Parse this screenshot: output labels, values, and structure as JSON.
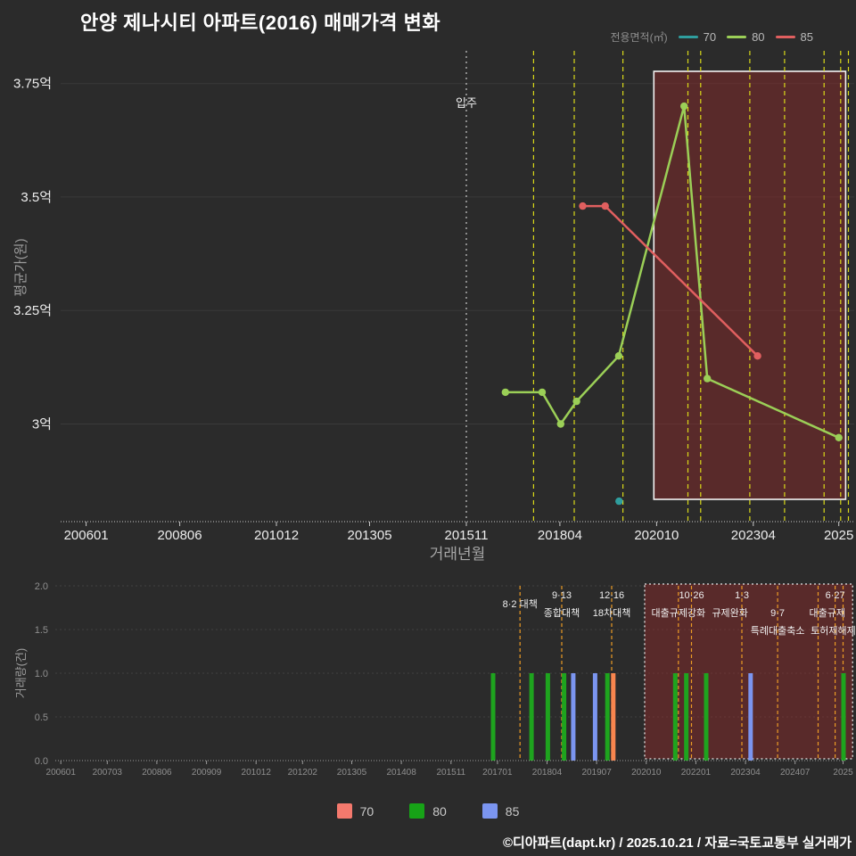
{
  "title": "안양 제나시티 아파트(2016) 매매가격 변화",
  "legend_top": {
    "label": "전용면적(㎡)",
    "items": [
      {
        "label": "70",
        "color": "#2f9e9e"
      },
      {
        "label": "80",
        "color": "#9bcf57"
      },
      {
        "label": "85",
        "color": "#e05f5f"
      }
    ]
  },
  "legend_bottom": {
    "items": [
      {
        "label": "70",
        "color": "#f4796d"
      },
      {
        "label": "80",
        "color": "#17a317"
      },
      {
        "label": "85",
        "color": "#7b95f0"
      }
    ]
  },
  "footer": "©디아파트(dapt.kr) / 2025.10.21 / 자료=국토교통부 실거래가",
  "chart_data": [
    {
      "type": "line",
      "name": "price",
      "xlabel": "거래년월",
      "ylabel": "평균가(원)",
      "unit": "억",
      "y_ticks": [
        {
          "v": 3.0,
          "label": "3억"
        },
        {
          "v": 3.25,
          "label": "3.25억"
        },
        {
          "v": 3.5,
          "label": "3.5억"
        },
        {
          "v": 3.75,
          "label": "3.75억"
        }
      ],
      "x_ticks": [
        {
          "v": 2006.04,
          "label": "200601"
        },
        {
          "v": 2008.46,
          "label": "200806"
        },
        {
          "v": 2010.96,
          "label": "201012"
        },
        {
          "v": 2013.37,
          "label": "201305"
        },
        {
          "v": 2015.87,
          "label": "201511"
        },
        {
          "v": 2018.29,
          "label": "201804"
        },
        {
          "v": 2020.79,
          "label": "202010"
        },
        {
          "v": 2023.29,
          "label": "202304"
        },
        {
          "v": 2025.5,
          "label": "2025"
        }
      ],
      "move_in": {
        "t": 2015.87,
        "label": "입주"
      },
      "policy_lines": [
        2017.61,
        2018.66,
        2019.92,
        2021.6,
        2021.93,
        2023.2,
        2024.1,
        2025.12,
        2025.55,
        2025.75
      ],
      "highlight": {
        "t0": 2020.72,
        "t1": 2025.68
      },
      "series": [
        {
          "name": "70",
          "color": "#2f9e9e",
          "points": [
            [
              2019.82,
              2.83
            ]
          ]
        },
        {
          "name": "80",
          "color": "#9bcf57",
          "points": [
            [
              2016.88,
              3.07
            ],
            [
              2017.83,
              3.07
            ],
            [
              2018.31,
              3.0
            ],
            [
              2018.72,
              3.05
            ],
            [
              2019.81,
              3.15
            ],
            [
              2021.5,
              3.7
            ],
            [
              2022.1,
              3.1
            ],
            [
              2025.5,
              2.97
            ]
          ]
        },
        {
          "name": "85",
          "color": "#e05f5f",
          "points": [
            [
              2018.88,
              3.48
            ],
            [
              2019.46,
              3.48
            ],
            [
              2023.4,
              3.15
            ]
          ]
        }
      ]
    },
    {
      "type": "bar",
      "name": "volume",
      "ylabel": "거래량(건)",
      "ylim": [
        0,
        2
      ],
      "y_ticks": [
        {
          "v": 0,
          "label": "0.0"
        },
        {
          "v": 0.5,
          "label": "0.5"
        },
        {
          "v": 1,
          "label": "1.0"
        },
        {
          "v": 1.5,
          "label": "1.5"
        },
        {
          "v": 2,
          "label": "2.0"
        }
      ],
      "x_ticks": [
        {
          "v": 2006.04,
          "label": "200601"
        },
        {
          "v": 2007.21,
          "label": "200703"
        },
        {
          "v": 2008.46,
          "label": "200806"
        },
        {
          "v": 2009.71,
          "label": "200909"
        },
        {
          "v": 2010.96,
          "label": "201012"
        },
        {
          "v": 2012.13,
          "label": "201202"
        },
        {
          "v": 2013.37,
          "label": "201305"
        },
        {
          "v": 2014.62,
          "label": "201408"
        },
        {
          "v": 2015.87,
          "label": "201511"
        },
        {
          "v": 2017.04,
          "label": "201701"
        },
        {
          "v": 2018.29,
          "label": "201804"
        },
        {
          "v": 2019.54,
          "label": "201907"
        },
        {
          "v": 2020.79,
          "label": "202010"
        },
        {
          "v": 2022.04,
          "label": "202201"
        },
        {
          "v": 2023.29,
          "label": "202304"
        },
        {
          "v": 2024.54,
          "label": "202407"
        },
        {
          "v": 2025.75,
          "label": "2025"
        }
      ],
      "policy_lines": [
        2017.61,
        2018.66,
        2019.92,
        2021.6,
        2021.93,
        2023.2,
        2024.1,
        2025.12,
        2025.55,
        2025.75
      ],
      "highlight": {
        "t0": 2020.75,
        "t1": 2025.99
      },
      "bar_colors": {
        "70": "#f8854e",
        "80": "#1ea41e",
        "85": "#7b95f0"
      },
      "bars": [
        {
          "t": 2016.93,
          "count": 1,
          "series": "80"
        },
        {
          "t": 2017.9,
          "count": 1,
          "series": "80"
        },
        {
          "t": 2018.31,
          "count": 1,
          "series": "80"
        },
        {
          "t": 2018.72,
          "count": 1,
          "series": "80"
        },
        {
          "t": 2018.95,
          "count": 1,
          "series": "85"
        },
        {
          "t": 2019.5,
          "count": 1,
          "series": "85"
        },
        {
          "t": 2019.81,
          "count": 1,
          "series": "80"
        },
        {
          "t": 2019.96,
          "count": 1,
          "series": "70"
        },
        {
          "t": 2021.52,
          "count": 1,
          "series": "80"
        },
        {
          "t": 2021.8,
          "count": 1,
          "series": "80"
        },
        {
          "t": 2022.3,
          "count": 1,
          "series": "80"
        },
        {
          "t": 2023.42,
          "count": 1,
          "series": "85"
        },
        {
          "t": 2025.76,
          "count": 1,
          "series": "80"
        }
      ],
      "annotations": [
        {
          "t": 2017.61,
          "row": 0.5,
          "text": "8·2 대책"
        },
        {
          "t": 2018.66,
          "row": 0,
          "text": "9·13"
        },
        {
          "t": 2018.66,
          "row": 1,
          "text": "종합대책"
        },
        {
          "t": 2019.92,
          "row": 0,
          "text": "12·16"
        },
        {
          "t": 2019.92,
          "row": 1,
          "text": "18차대책"
        },
        {
          "t": 2021.6,
          "row": 1,
          "text": "대출규제강화"
        },
        {
          "t": 2021.93,
          "row": 0,
          "text": "10·26"
        },
        {
          "t": 2022.9,
          "row": 1,
          "text": "규제완화"
        },
        {
          "t": 2023.2,
          "row": 0,
          "text": "1·3"
        },
        {
          "t": 2024.1,
          "row": 1,
          "text": "9·7"
        },
        {
          "t": 2024.1,
          "row": 2,
          "text": "특례대출축소"
        },
        {
          "t": 2025.35,
          "row": 1,
          "text": "대출규제"
        },
        {
          "t": 2025.55,
          "row": 0,
          "text": "6·27"
        },
        {
          "t": 2025.5,
          "row": 2,
          "text": "토허제해제"
        }
      ]
    }
  ]
}
